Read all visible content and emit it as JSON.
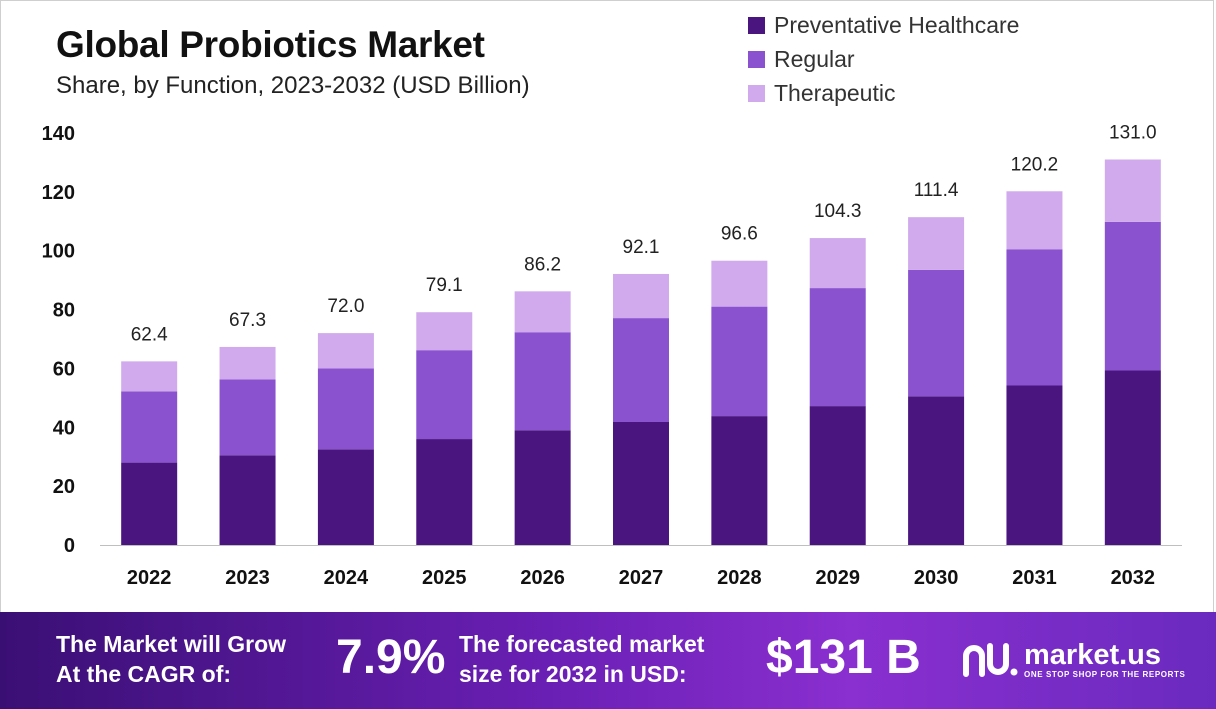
{
  "header": {
    "title": "Global Probiotics Market",
    "subtitle": "Share, by Function, 2023-2032 (USD Billion)"
  },
  "chart_data": {
    "type": "bar",
    "stacked": true,
    "categories": [
      "2022",
      "2023",
      "2024",
      "2025",
      "2026",
      "2027",
      "2028",
      "2029",
      "2030",
      "2031",
      "2032"
    ],
    "series": [
      {
        "name": "Preventative Healthcare",
        "color": "#4b1580",
        "values": [
          28,
          30.5,
          32.5,
          36,
          39,
          41.8,
          43.8,
          47.2,
          50.5,
          54.2,
          59.3
        ]
      },
      {
        "name": "Regular",
        "color": "#8a52cf",
        "values": [
          24.2,
          25.8,
          27.5,
          30.2,
          33.3,
          35.3,
          37.2,
          40.1,
          43,
          46.3,
          50.5
        ]
      },
      {
        "name": "Therapeutic",
        "color": "#d0aaec",
        "values": [
          10.2,
          11,
          12,
          12.9,
          13.9,
          15,
          15.6,
          17,
          17.9,
          19.7,
          21.2
        ]
      }
    ],
    "totals": [
      "62.4",
      "67.3",
      "72.0",
      "79.1",
      "86.2",
      "92.1",
      "96.6",
      "104.3",
      "111.4",
      "120.2",
      "131.0"
    ],
    "ylim": [
      0,
      140
    ],
    "yticks": [
      "0",
      "20",
      "40",
      "60",
      "80",
      "100",
      "120",
      "140"
    ],
    "grid": false,
    "legend_position": "top-right"
  },
  "footer": {
    "cagr_label_line1": "The Market will Grow",
    "cagr_label_line2": "At the CAGR of:",
    "cagr_value": "7.9%",
    "forecast_label_line1": "The forecasted market",
    "forecast_label_line2": "size for 2032 in USD:",
    "forecast_value": "$131 B",
    "brand_name": "market.us",
    "brand_tagline": "ONE STOP SHOP FOR THE REPORTS"
  }
}
